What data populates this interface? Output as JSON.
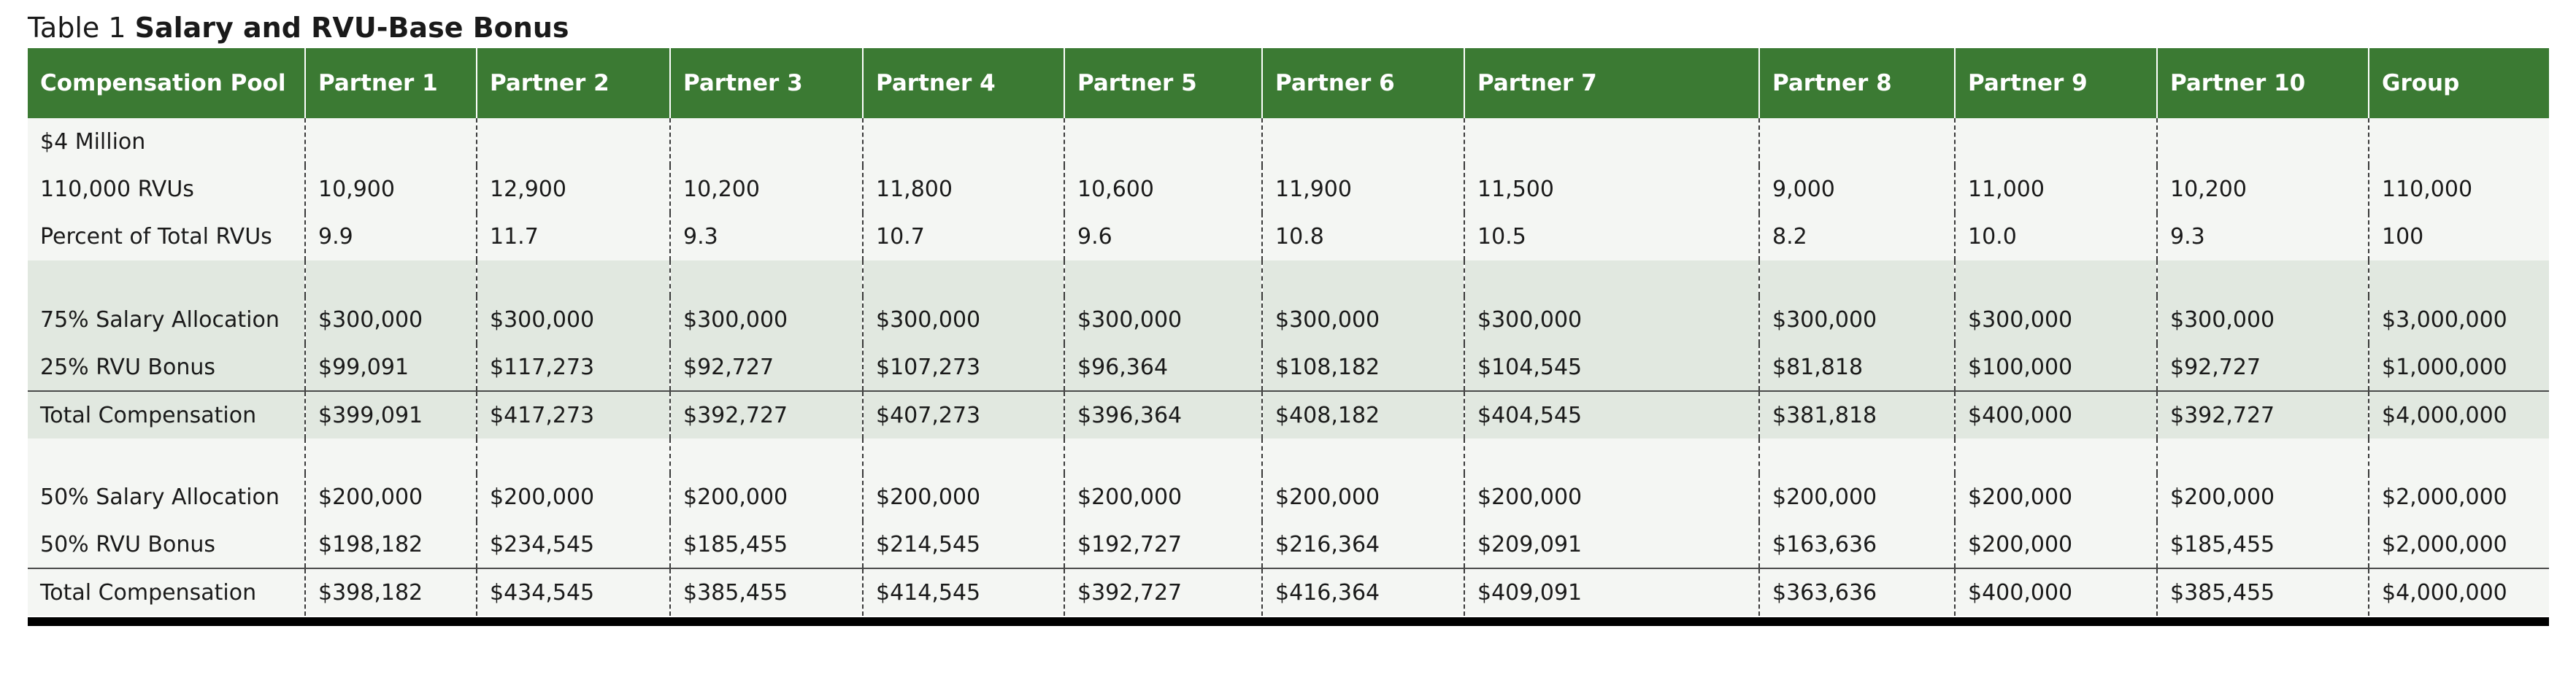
{
  "caption": {
    "number": "Table 1",
    "title": "Salary and RVU-Base Bonus"
  },
  "columns": [
    "Compensation Pool",
    "Partner 1",
    "Partner 2",
    "Partner 3",
    "Partner 4",
    "Partner 5",
    "Partner 6",
    "Partner 7",
    "Partner 8",
    "Partner 9",
    "Partner 10",
    "Group"
  ],
  "rows": {
    "pool": {
      "label": "$4 Million",
      "cells": [
        "",
        "",
        "",
        "",
        "",
        "",
        "",
        "",
        "",
        "",
        ""
      ]
    },
    "rvus": {
      "label": "110,000 RVUs",
      "cells": [
        "10,900",
        "12,900",
        "10,200",
        "11,800",
        "10,600",
        "11,900",
        "11,500",
        "9,000",
        "11,000",
        "10,200",
        "110,000"
      ]
    },
    "percent": {
      "label": "Percent of Total RVUs",
      "cells": [
        "9.9",
        "11.7",
        "9.3",
        "10.7",
        "9.6",
        "10.8",
        "10.5",
        "8.2",
        "10.0",
        "9.3",
        "100"
      ]
    },
    "salary75": {
      "label": "75% Salary Allocation",
      "cells": [
        "$300,000",
        "$300,000",
        "$300,000",
        "$300,000",
        "$300,000",
        "$300,000",
        "$300,000",
        "$300,000",
        "$300,000",
        "$300,000",
        "$3,000,000"
      ]
    },
    "bonus25": {
      "label": "25% RVU Bonus",
      "cells": [
        "$99,091",
        "$117,273",
        "$92,727",
        "$107,273",
        "$96,364",
        "$108,182",
        "$104,545",
        "$81,818",
        "$100,000",
        "$92,727",
        "$1,000,000"
      ]
    },
    "total_a": {
      "label": "Total Compensation",
      "cells": [
        "$399,091",
        "$417,273",
        "$392,727",
        "$407,273",
        "$396,364",
        "$408,182",
        "$404,545",
        "$381,818",
        "$400,000",
        "$392,727",
        "$4,000,000"
      ]
    },
    "salary50": {
      "label": "50% Salary Allocation",
      "cells": [
        "$200,000",
        "$200,000",
        "$200,000",
        "$200,000",
        "$200,000",
        "$200,000",
        "$200,000",
        "$200,000",
        "$200,000",
        "$200,000",
        "$2,000,000"
      ]
    },
    "bonus50": {
      "label": "50% RVU Bonus",
      "cells": [
        "$198,182",
        "$234,545",
        "$185,455",
        "$214,545",
        "$192,727",
        "$216,364",
        "$209,091",
        "$163,636",
        "$200,000",
        "$185,455",
        "$2,000,000"
      ]
    },
    "total_b": {
      "label": "Total Compensation",
      "cells": [
        "$398,182",
        "$434,545",
        "$385,455",
        "$414,545",
        "$392,727",
        "$416,364",
        "$409,091",
        "$363,636",
        "$400,000",
        "$385,455",
        "$4,000,000"
      ]
    }
  }
}
